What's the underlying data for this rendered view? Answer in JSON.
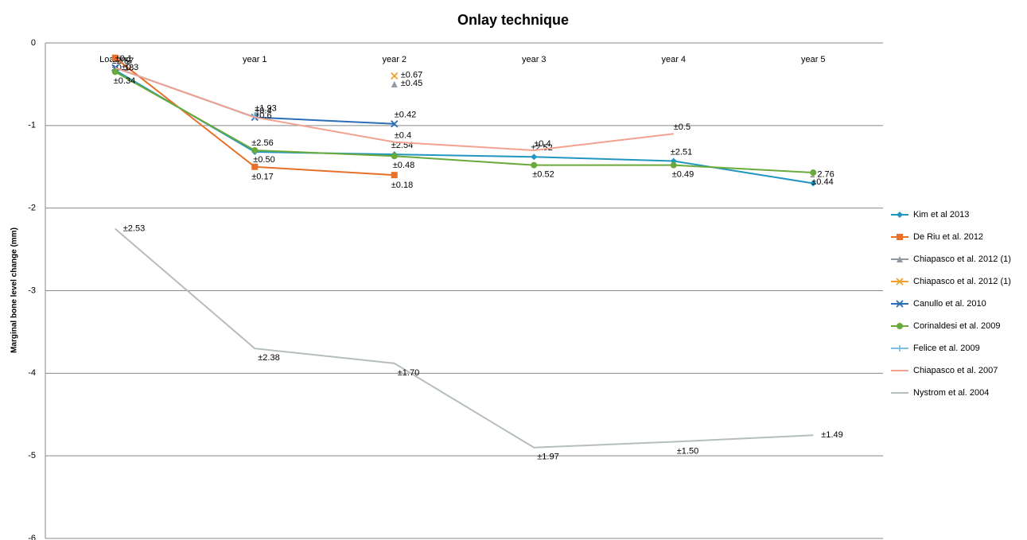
{
  "chart_data": {
    "type": "line",
    "title": "Onlay technique",
    "y_label": "Marginal bone level change (mm)",
    "categories": [
      "Loading",
      "year 1",
      "year 2",
      "year 3",
      "year 4",
      "year 5"
    ],
    "ylim": [
      -6,
      0
    ],
    "yticks": [
      -6,
      -5,
      -4,
      -3,
      -2,
      -1,
      0
    ],
    "grid": true,
    "legend": "right",
    "series": [
      {
        "name": "Kim et al 2013",
        "color": "#2196c0",
        "marker": "diamond",
        "values": [
          -0.33,
          -1.32,
          -1.35,
          -1.38,
          -1.43,
          -1.7
        ],
        "error_labels": [
          "±2.57",
          "±2.56",
          "±2.54",
          "±2.52",
          "±2.51",
          "± 2.76"
        ]
      },
      {
        "name": "De Riu et al. 2012",
        "color": "#e8702a",
        "marker": "square",
        "values": [
          -0.18,
          -1.5,
          -1.6,
          null,
          null,
          null
        ],
        "error_labels": [
          "±0.18",
          "±0.17",
          "±0.18",
          null,
          null,
          null
        ]
      },
      {
        "name": "Chiapasco et al. 2012 (1)",
        "color": "#8f9aa5",
        "marker": "triangle",
        "values": [
          null,
          null,
          -0.5,
          null,
          null,
          null
        ],
        "error_labels": [
          null,
          null,
          "±0.45",
          null,
          null,
          null
        ]
      },
      {
        "name": "Chiapasco et al. 2012 (1)",
        "color": "#f0a030",
        "marker": "x",
        "values": [
          null,
          null,
          -0.4,
          null,
          null,
          null
        ],
        "error_labels": [
          null,
          null,
          "±0.67",
          null,
          null,
          null
        ]
      },
      {
        "name": "Canullo et al. 2010",
        "color": "#2a6db5",
        "marker": "x",
        "values": [
          -0.3,
          -0.9,
          -0.98,
          null,
          null,
          null
        ],
        "error_labels": [
          "±0.1",
          "±1.93",
          "±0.42",
          null,
          null,
          null
        ]
      },
      {
        "name": "Corinaldesi et al. 2009",
        "color": "#6aaa3a",
        "marker": "circle",
        "values": [
          -0.35,
          -1.3,
          -1.37,
          -1.48,
          -1.48,
          -1.57
        ],
        "error_labels": [
          "±0.34",
          "±0.50",
          "±0.48",
          "±0.52",
          "±0.49",
          "±0.44"
        ]
      },
      {
        "name": "Felice et al. 2009",
        "color": "#7fc0e0",
        "marker": "plus",
        "values": [
          null,
          -0.88,
          null,
          null,
          null,
          null
        ],
        "error_labels": [
          null,
          "±0.6",
          null,
          null,
          null,
          null
        ]
      },
      {
        "name": "Chiapasco et al. 2007",
        "color": "#f2a28e",
        "marker": "none",
        "values": [
          -0.3,
          -0.9,
          -1.2,
          -1.3,
          -1.1,
          null
        ],
        "error_labels": [
          "±0.3",
          "±0.4",
          "±0.4",
          "±0.4",
          "±0.5",
          null
        ]
      },
      {
        "name": "Nystrom et al. 2004",
        "color": "#b5bdbd",
        "marker": "none",
        "values": [
          -2.25,
          -3.7,
          -3.88,
          -4.9,
          -4.83,
          -4.75
        ],
        "error_labels": [
          "±2.53",
          "±2.38",
          "±1.70",
          "±1.97",
          "±1.50",
          "±1.49"
        ]
      }
    ]
  }
}
